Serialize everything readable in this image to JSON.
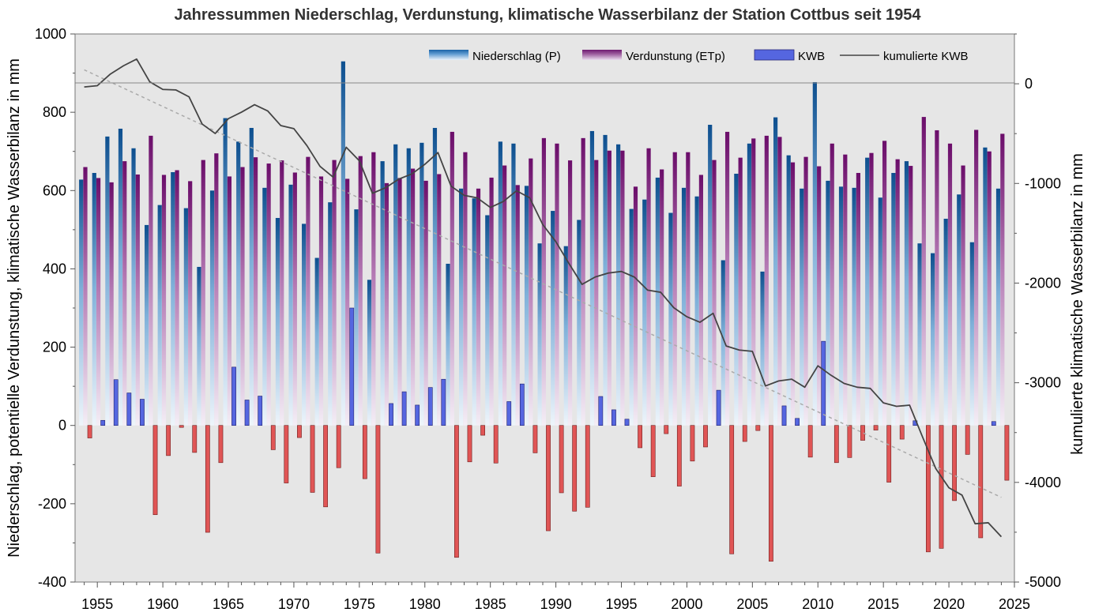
{
  "chart_data": {
    "type": "bar",
    "title": "Jahressummen Niederschlag, Verdunstung, klimatische Wasserbilanz der Station Cottbus seit 1954",
    "ylabel_left": "Niederschlag, potentielle Verdunstung, klimatische Wasserbilanz in mm",
    "ylabel_right": "kumulierte klimatische Wasserbilanz in mm",
    "xlim": [
      1953.3,
      2025
    ],
    "ylim_left": [
      -400,
      1000
    ],
    "ylim_right": [
      -5000,
      500
    ],
    "x_ticks": [
      1955,
      1960,
      1965,
      1970,
      1975,
      1980,
      1985,
      1990,
      1995,
      2000,
      2005,
      2010,
      2015,
      2020,
      2025
    ],
    "y_ticks_left": [
      -400,
      -200,
      0,
      200,
      400,
      600,
      800,
      1000
    ],
    "y_ticks_right": [
      -5000,
      -4000,
      -3000,
      -2000,
      -1000,
      0
    ],
    "legend": {
      "position": "top-right",
      "entries": [
        "Niederschlag (P)",
        "Verdunstung (ETp)",
        "KWB",
        "kumulierte KWB"
      ]
    },
    "colors": {
      "precip": "#1a5fa0",
      "evap": "#7a1a78",
      "kwb_pos": "#5566e0",
      "kwb_neg": "#e05555",
      "cum_line": "#444444",
      "trend": "#aaaaaa",
      "plot_bg": "#e6e6e6"
    },
    "years": [
      1954,
      1955,
      1956,
      1957,
      1958,
      1959,
      1960,
      1961,
      1962,
      1963,
      1964,
      1965,
      1966,
      1967,
      1968,
      1969,
      1970,
      1971,
      1972,
      1973,
      1974,
      1975,
      1976,
      1977,
      1978,
      1979,
      1980,
      1981,
      1982,
      1983,
      1984,
      1985,
      1986,
      1987,
      1988,
      1989,
      1990,
      1991,
      1992,
      1993,
      1994,
      1995,
      1996,
      1997,
      1998,
      1999,
      2000,
      2001,
      2002,
      2003,
      2004,
      2005,
      2006,
      2007,
      2008,
      2009,
      2010,
      2011,
      2012,
      2013,
      2014,
      2015,
      2016,
      2017,
      2018,
      2019,
      2020,
      2021,
      2022,
      2023,
      2024
    ],
    "series": [
      {
        "name": "Niederschlag (P)",
        "values": [
          628,
          645,
          738,
          758,
          708,
          512,
          563,
          647,
          555,
          405,
          600,
          785,
          725,
          760,
          607,
          530,
          615,
          515,
          428,
          570,
          930,
          552,
          372,
          675,
          718,
          708,
          722,
          760,
          413,
          605,
          580,
          537,
          725,
          720,
          612,
          465,
          548,
          458,
          525,
          752,
          742,
          718,
          553,
          577,
          633,
          543,
          607,
          585,
          768,
          422,
          643,
          720,
          393,
          787,
          690,
          605,
          877,
          625,
          610,
          607,
          684,
          582,
          645,
          675,
          465,
          440,
          528,
          590,
          468,
          710,
          605
        ]
      },
      {
        "name": "Verdunstung (ETp)",
        "values": [
          660,
          632,
          621,
          675,
          641,
          740,
          640,
          652,
          624,
          678,
          695,
          636,
          660,
          685,
          669,
          677,
          646,
          686,
          636,
          678,
          630,
          688,
          698,
          619,
          632,
          656,
          625,
          642,
          750,
          698,
          605,
          633,
          664,
          614,
          682,
          734,
          720,
          677,
          734,
          678,
          702,
          702,
          610,
          708,
          654,
          698,
          698,
          640,
          678,
          750,
          684,
          733,
          740,
          737,
          672,
          686,
          662,
          720,
          692,
          645,
          696,
          727,
          680,
          663,
          788,
          754,
          720,
          664,
          755,
          700,
          745
        ]
      },
      {
        "name": "KWB",
        "values": [
          -32,
          13,
          117,
          83,
          67,
          -228,
          -77,
          -5,
          -69,
          -273,
          -95,
          149,
          65,
          75,
          -62,
          -147,
          -31,
          -171,
          -208,
          -108,
          300,
          -136,
          -326,
          56,
          86,
          52,
          97,
          118,
          -337,
          -93,
          -25,
          -96,
          61,
          106,
          -70,
          -269,
          -172,
          -219,
          -209,
          74,
          40,
          16,
          -57,
          -131,
          -21,
          -155,
          -91,
          -55,
          90,
          -328,
          -41,
          -13,
          -347,
          50,
          18,
          -81,
          215,
          -95,
          -82,
          -38,
          -12,
          -145,
          -35,
          12,
          -323,
          -314,
          -192,
          -74,
          -287,
          10,
          -140
        ]
      },
      {
        "name": "kumulierte KWB",
        "values": [
          -32,
          -19,
          98,
          181,
          248,
          20,
          -57,
          -62,
          -131,
          -404,
          -499,
          -350,
          -285,
          -210,
          -272,
          -419,
          -450,
          -621,
          -829,
          -937,
          -637,
          -773,
          -1099,
          -1043,
          -957,
          -905,
          -808,
          -690,
          -1027,
          -1120,
          -1145,
          -1241,
          -1180,
          -1074,
          -1144,
          -1413,
          -1585,
          -1804,
          -2013,
          -1939,
          -1899,
          -1883,
          -1940,
          -2071,
          -2092,
          -2247,
          -2338,
          -2393,
          -2303,
          -2631,
          -2672,
          -2685,
          -3032,
          -2982,
          -2964,
          -3045,
          -2830,
          -2925,
          -3007,
          -3045,
          -3057,
          -3202,
          -3237,
          -3225,
          -3548,
          -3862,
          -4054,
          -4128,
          -4415,
          -4405,
          -4545
        ]
      },
      {
        "name": "Trend kumulierte KWB",
        "values_endpoints": [
          [
            1954,
            140
          ],
          [
            2024,
            -4150
          ]
        ]
      }
    ]
  }
}
